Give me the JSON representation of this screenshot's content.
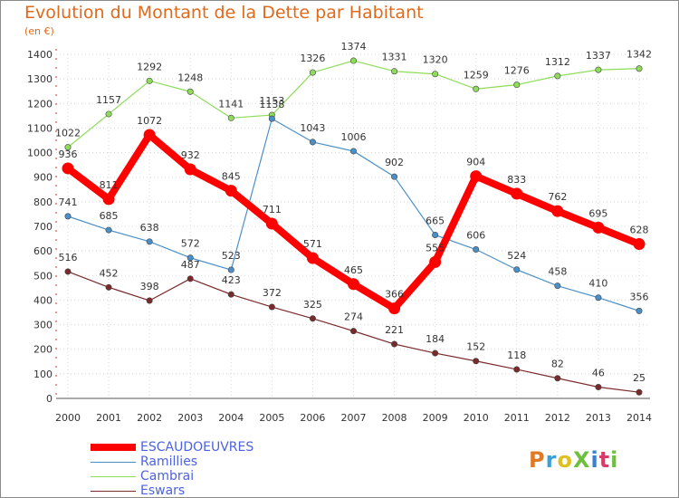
{
  "header": {
    "title": "Evolution du Montant de la Dette par Habitant",
    "subtitle": "(en €)"
  },
  "logo": {
    "text": "ProXiti",
    "colors": [
      "#e07a24",
      "#3aa0d8",
      "#e0c020",
      "#6fbf3f",
      "#3a7fd0",
      "#d83a6a",
      "#6fbf3f"
    ]
  },
  "chart_data": {
    "type": "line",
    "title": "Evolution du Montant de la Dette par Habitant",
    "subtitle": "(en €)",
    "x": [
      "2000",
      "2001",
      "2002",
      "2003",
      "2004",
      "2005",
      "2006",
      "2007",
      "2008",
      "2009",
      "2010",
      "2011",
      "2012",
      "2013",
      "2014"
    ],
    "ylim": [
      0,
      1400
    ],
    "yticks": [
      0,
      100,
      200,
      300,
      400,
      500,
      600,
      700,
      800,
      900,
      1000,
      1100,
      1200,
      1300,
      1400
    ],
    "grid": true,
    "legend": "bottom-left",
    "series": [
      {
        "name": "ESCAUDOEUVRES",
        "color": "#ff0000",
        "values": [
          936,
          811,
          1072,
          932,
          845,
          711,
          571,
          465,
          366,
          555,
          904,
          833,
          762,
          695,
          628
        ],
        "labels": [
          "936",
          "811",
          "1072",
          "932",
          "845",
          "711",
          "571",
          "465",
          "366",
          "555",
          "904",
          "833",
          "762",
          "695",
          "628"
        ]
      },
      {
        "name": "Ramillies",
        "color": "#4a90c8",
        "values": [
          741,
          685,
          638,
          572,
          523,
          1138,
          1043,
          1006,
          902,
          665,
          606,
          524,
          458,
          410,
          356
        ],
        "labels": [
          "741",
          "685",
          "638",
          "572",
          "523",
          "1138",
          "1043",
          "1006",
          "902",
          "665",
          "606",
          "524",
          "458",
          "410",
          "356"
        ]
      },
      {
        "name": "Cambrai",
        "color": "#8fdc5a",
        "values": [
          1022,
          1157,
          1292,
          1248,
          1141,
          1153,
          1326,
          1374,
          1331,
          1320,
          1259,
          1276,
          1312,
          1337,
          1342
        ],
        "labels": [
          "1022",
          "1157",
          "1292",
          "1248",
          "1141",
          "1153",
          "1326",
          "1374",
          "1331",
          "1320",
          "1259",
          "1276",
          "1312",
          "1337",
          "1342"
        ]
      },
      {
        "name": "Eswars",
        "color": "#7a2a2a",
        "values": [
          516,
          452,
          398,
          487,
          423,
          372,
          325,
          274,
          221,
          184,
          152,
          118,
          82,
          46,
          25
        ],
        "labels": [
          "516",
          "452",
          "398",
          "487",
          "423",
          "372",
          "325",
          "274",
          "221",
          "184",
          "152",
          "118",
          "82",
          "46",
          "25"
        ]
      }
    ]
  }
}
